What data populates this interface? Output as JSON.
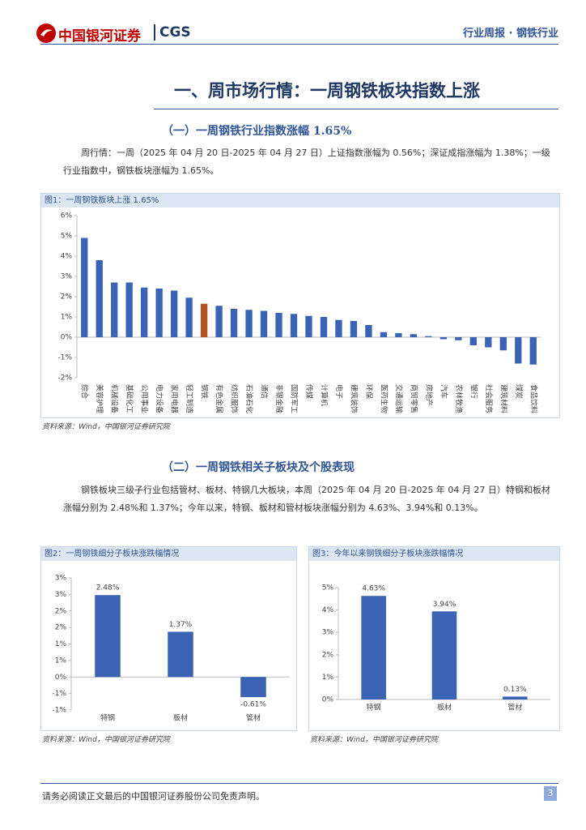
{
  "header": {
    "logo": "中国银河证券",
    "logo_en": "CGS",
    "tag": "行业周报 · 钢铁行业"
  },
  "section_title": "一、周市场行情：一周钢铁板块指数上涨",
  "sub1": "（一）一周钢铁行业指数涨幅 1.65%",
  "para1": "周行情：一周（2025 年 04 月 20 日-2025 年 04 月 27 日）上证指数涨幅为 0.56%；深证成指涨幅为 1.38%；一级行业指数中，钢铁板块涨幅为 1.65%。",
  "sub2": "（二）一周钢铁相关子板块及个股表现",
  "para2": "钢铁板块三级子行业包括管材、板材、特钢几大板块，本周（2025 年 04 月 20 日-2025 年 04 月 27 日）特钢和板材涨幅分别为 2.48%和 1.37%；今年以来，特钢、板材和管材板块涨幅分别为 4.63%、3.94%和 0.13%。",
  "footer": "请务必阅读正文最后的中国银河证券股份公司免责声明。",
  "page_number": "3",
  "chart_data": [
    {
      "type": "bar",
      "title": "图1：一周钢铁板块上涨 1.65%",
      "source": "资料来源：Wind，中国银河证券研究院",
      "categories": [
        "综合",
        "美容护理",
        "机械设备",
        "基础化工",
        "公用事业",
        "电力设备",
        "家用电器",
        "轻工制造",
        "钢铁",
        "有色金属",
        "纺织服饰",
        "石油石化",
        "通信",
        "非银金融",
        "国防军工",
        "传媒",
        "计算机",
        "电子",
        "建筑装饰",
        "环保",
        "医药生物",
        "交通运输",
        "商贸零售",
        "房地产",
        "汽车",
        "农林牧渔",
        "银行",
        "社会服务",
        "建筑材料",
        "煤炭",
        "食品饮料"
      ],
      "values": [
        4.9,
        3.8,
        2.7,
        2.7,
        2.45,
        2.4,
        2.3,
        1.95,
        1.65,
        1.55,
        1.4,
        1.35,
        1.3,
        1.2,
        1.15,
        1.05,
        1.0,
        0.85,
        0.8,
        0.6,
        0.25,
        0.2,
        0.15,
        0.05,
        -0.1,
        -0.15,
        -0.4,
        -0.5,
        -0.65,
        -1.3,
        -1.35
      ],
      "color": "#3b63b3",
      "highlight": {
        "index": 8,
        "color": "#b3541e"
      },
      "ylim": [
        -2,
        6
      ],
      "yticks": [
        {
          "value": -2,
          "label": "-2%"
        },
        {
          "value": -1,
          "label": "-1%"
        },
        {
          "value": 0,
          "label": "0%"
        },
        {
          "value": 1,
          "label": "1%"
        },
        {
          "value": 2,
          "label": "2%"
        },
        {
          "value": 3,
          "label": "3%"
        },
        {
          "value": 4,
          "label": "4%"
        },
        {
          "value": 5,
          "label": "5%"
        },
        {
          "value": 6,
          "label": "6%"
        }
      ],
      "grid": false
    },
    {
      "type": "bar",
      "title": "图2：一周钢铁细分子板块涨跌幅情况",
      "source": "资料来源：Wind，中国银河证券研究院",
      "categories": [
        "特钢",
        "板材",
        "管材"
      ],
      "values": [
        2.48,
        1.37,
        -0.61
      ],
      "value_labels": [
        "2.48%",
        "1.37%",
        "-0.61%"
      ],
      "color": "#3b63b3",
      "ylim": [
        -1,
        3
      ],
      "yticks": [
        {
          "value": -1,
          "label": "-1%"
        },
        {
          "value": -0.5,
          "label": "-1%"
        },
        {
          "value": 0,
          "label": "0%"
        },
        {
          "value": 0.5,
          "label": "1%"
        },
        {
          "value": 1,
          "label": "1%"
        },
        {
          "value": 1.5,
          "label": "2%"
        },
        {
          "value": 2,
          "label": "2%"
        },
        {
          "value": 2.5,
          "label": "3%"
        },
        {
          "value": 3,
          "label": "3%"
        }
      ],
      "grid": false
    },
    {
      "type": "bar",
      "title": "图3：今年以来钢铁细分子板块涨跌幅情况",
      "source": "资料来源：Wind，中国银河证券研究院",
      "categories": [
        "特钢",
        "板材",
        "管材"
      ],
      "values": [
        4.63,
        3.94,
        0.13
      ],
      "value_labels": [
        "4.63%",
        "3.94%",
        "0.13%"
      ],
      "color": "#3b63b3",
      "ylim": [
        0,
        5
      ],
      "yticks": [
        {
          "value": 0,
          "label": "0%"
        },
        {
          "value": 1,
          "label": "1%"
        },
        {
          "value": 2,
          "label": "2%"
        },
        {
          "value": 3,
          "label": "3%"
        },
        {
          "value": 4,
          "label": "4%"
        },
        {
          "value": 5,
          "label": "5%"
        }
      ],
      "grid": false
    }
  ]
}
